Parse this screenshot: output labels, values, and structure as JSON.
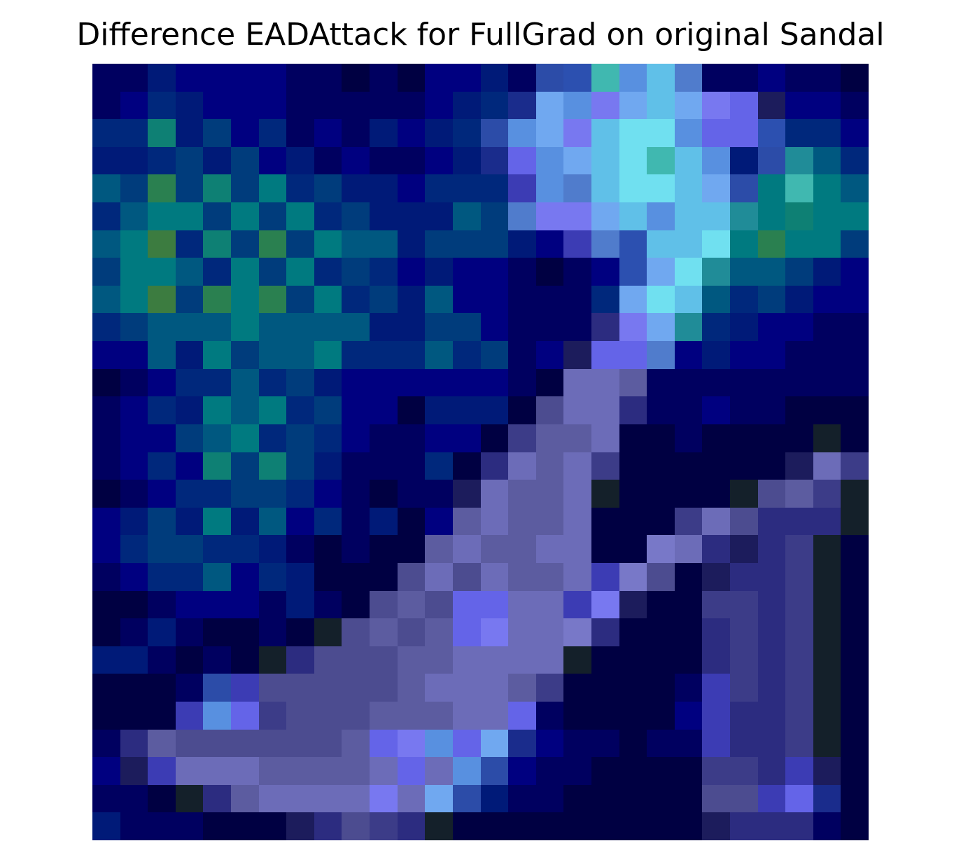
{
  "title": "Difference EADAttack for FullGrad on original Sandal",
  "chart_data": {
    "type": "heatmap",
    "title": "Difference EADAttack for FullGrad on original Sandal",
    "xlabel": "",
    "ylabel": "",
    "axes_visible": false,
    "grid": false,
    "rows": 28,
    "cols": 28,
    "palette": [
      "#000042",
      "#000060",
      "#000080",
      "#001a78",
      "#00287c",
      "#003c7c",
      "#005880",
      "#007a80",
      "#0e8074",
      "#2a8050",
      "#3c7c40",
      "#14202a",
      "#1c1c5c",
      "#2c2c80",
      "#3c3c88",
      "#4c4c90",
      "#5c5ca0",
      "#6c6cb8",
      "#7878c8",
      "#6464e8",
      "#7878f0",
      "#3c3cb4",
      "#2c4ca8",
      "#507ccc",
      "#5890e0",
      "#70a8f0",
      "#60c0e8",
      "#70e0f0",
      "#40b8b0",
      "#208c98",
      "#1a2c8c",
      "#2c50b0"
    ],
    "cells": [
      [
        1,
        1,
        3,
        2,
        2,
        2,
        2,
        1,
        1,
        0,
        1,
        0,
        2,
        2,
        3,
        1,
        22,
        31,
        28,
        24,
        26,
        23,
        1,
        1,
        2,
        1,
        1,
        0
      ],
      [
        1,
        2,
        4,
        3,
        2,
        2,
        2,
        1,
        1,
        1,
        1,
        1,
        2,
        3,
        4,
        30,
        25,
        24,
        20,
        25,
        26,
        25,
        20,
        19,
        12,
        2,
        2,
        1
      ],
      [
        4,
        4,
        8,
        3,
        5,
        2,
        4,
        1,
        2,
        1,
        3,
        2,
        3,
        4,
        22,
        24,
        25,
        20,
        26,
        27,
        27,
        24,
        19,
        19,
        31,
        4,
        4,
        2
      ],
      [
        3,
        3,
        4,
        5,
        3,
        5,
        2,
        3,
        1,
        2,
        1,
        1,
        2,
        3,
        30,
        19,
        24,
        25,
        26,
        27,
        28,
        26,
        24,
        3,
        22,
        29,
        6,
        4
      ],
      [
        6,
        5,
        9,
        5,
        8,
        5,
        7,
        4,
        5,
        3,
        3,
        2,
        4,
        4,
        4,
        21,
        24,
        23,
        26,
        27,
        27,
        26,
        25,
        22,
        7,
        28,
        7,
        6
      ],
      [
        4,
        6,
        7,
        7,
        5,
        7,
        5,
        7,
        4,
        5,
        3,
        3,
        3,
        6,
        5,
        23,
        20,
        20,
        25,
        26,
        24,
        26,
        26,
        29,
        7,
        8,
        7,
        7
      ],
      [
        6,
        7,
        10,
        4,
        8,
        5,
        9,
        5,
        7,
        6,
        6,
        3,
        5,
        5,
        5,
        3,
        2,
        21,
        23,
        31,
        26,
        26,
        27,
        7,
        9,
        7,
        7,
        5
      ],
      [
        5,
        7,
        7,
        6,
        4,
        7,
        5,
        7,
        4,
        5,
        4,
        2,
        3,
        2,
        2,
        1,
        0,
        1,
        2,
        31,
        25,
        27,
        29,
        6,
        6,
        5,
        3,
        2
      ],
      [
        6,
        7,
        10,
        5,
        9,
        7,
        9,
        5,
        7,
        4,
        5,
        3,
        6,
        2,
        2,
        1,
        1,
        1,
        4,
        25,
        27,
        26,
        6,
        4,
        5,
        3,
        2,
        2
      ],
      [
        4,
        5,
        6,
        6,
        6,
        7,
        6,
        6,
        6,
        6,
        3,
        3,
        5,
        5,
        2,
        1,
        1,
        1,
        13,
        20,
        25,
        29,
        4,
        3,
        2,
        2,
        1,
        1
      ],
      [
        2,
        2,
        6,
        3,
        7,
        5,
        6,
        6,
        7,
        4,
        4,
        4,
        6,
        4,
        5,
        1,
        2,
        12,
        19,
        19,
        23,
        2,
        3,
        2,
        2,
        1,
        1,
        1
      ],
      [
        0,
        1,
        2,
        4,
        4,
        6,
        4,
        5,
        3,
        2,
        2,
        2,
        2,
        2,
        2,
        1,
        0,
        17,
        17,
        16,
        1,
        1,
        1,
        1,
        1,
        1,
        1,
        1
      ],
      [
        1,
        2,
        4,
        3,
        7,
        6,
        7,
        4,
        5,
        2,
        2,
        0,
        3,
        3,
        3,
        0,
        15,
        17,
        17,
        13,
        1,
        1,
        2,
        1,
        1,
        0,
        0,
        0
      ],
      [
        1,
        2,
        2,
        5,
        6,
        7,
        4,
        5,
        4,
        2,
        1,
        1,
        2,
        2,
        0,
        14,
        16,
        16,
        17,
        0,
        0,
        1,
        0,
        0,
        0,
        0,
        11,
        0
      ],
      [
        1,
        2,
        4,
        2,
        8,
        5,
        8,
        5,
        3,
        1,
        1,
        1,
        4,
        0,
        13,
        17,
        16,
        17,
        14,
        0,
        0,
        0,
        0,
        0,
        0,
        12,
        17,
        14
      ],
      [
        0,
        1,
        2,
        4,
        4,
        5,
        5,
        4,
        2,
        1,
        0,
        1,
        1,
        12,
        17,
        16,
        16,
        17,
        11,
        0,
        0,
        0,
        0,
        11,
        15,
        16,
        14,
        11
      ],
      [
        2,
        3,
        5,
        3,
        7,
        3,
        6,
        2,
        4,
        1,
        3,
        0,
        2,
        16,
        17,
        16,
        16,
        17,
        0,
        0,
        0,
        14,
        17,
        15,
        13,
        13,
        13,
        11
      ],
      [
        2,
        4,
        5,
        5,
        4,
        4,
        3,
        1,
        0,
        1,
        0,
        0,
        16,
        17,
        16,
        16,
        17,
        17,
        0,
        0,
        18,
        17,
        13,
        12,
        13,
        14,
        11,
        0
      ],
      [
        1,
        2,
        4,
        4,
        6,
        2,
        4,
        3,
        0,
        0,
        0,
        15,
        17,
        15,
        17,
        16,
        16,
        17,
        21,
        18,
        15,
        0,
        12,
        13,
        13,
        14,
        11,
        0
      ],
      [
        0,
        0,
        1,
        2,
        2,
        2,
        1,
        3,
        1,
        0,
        15,
        16,
        15,
        19,
        19,
        17,
        17,
        21,
        20,
        12,
        0,
        0,
        14,
        14,
        13,
        14,
        11,
        0
      ],
      [
        0,
        1,
        3,
        1,
        0,
        0,
        1,
        0,
        11,
        15,
        16,
        15,
        16,
        19,
        20,
        17,
        17,
        18,
        13,
        0,
        0,
        0,
        13,
        14,
        13,
        14,
        11,
        0
      ],
      [
        3,
        3,
        1,
        0,
        1,
        0,
        11,
        13,
        15,
        15,
        15,
        16,
        16,
        17,
        17,
        17,
        17,
        11,
        0,
        0,
        0,
        0,
        13,
        14,
        13,
        14,
        11,
        0
      ],
      [
        0,
        0,
        0,
        1,
        22,
        21,
        15,
        15,
        15,
        15,
        15,
        16,
        17,
        17,
        17,
        16,
        14,
        0,
        0,
        0,
        0,
        1,
        21,
        14,
        13,
        14,
        11,
        0
      ],
      [
        0,
        0,
        0,
        21,
        24,
        19,
        14,
        15,
        15,
        15,
        16,
        16,
        16,
        17,
        17,
        19,
        1,
        0,
        0,
        0,
        0,
        2,
        21,
        13,
        13,
        14,
        11,
        0
      ],
      [
        1,
        13,
        16,
        15,
        15,
        15,
        15,
        15,
        15,
        16,
        19,
        20,
        24,
        19,
        25,
        30,
        2,
        1,
        1,
        0,
        1,
        1,
        21,
        13,
        13,
        14,
        11,
        0
      ],
      [
        2,
        12,
        21,
        17,
        17,
        17,
        16,
        16,
        16,
        16,
        17,
        19,
        17,
        24,
        22,
        2,
        1,
        1,
        0,
        0,
        0,
        0,
        14,
        14,
        13,
        21,
        12,
        0
      ],
      [
        1,
        1,
        0,
        11,
        13,
        16,
        17,
        17,
        17,
        17,
        20,
        17,
        25,
        22,
        3,
        1,
        1,
        0,
        0,
        0,
        0,
        0,
        15,
        15,
        21,
        19,
        30,
        0
      ],
      [
        3,
        1,
        1,
        1,
        0,
        0,
        0,
        12,
        13,
        15,
        14,
        13,
        11,
        0,
        0,
        0,
        0,
        0,
        0,
        0,
        0,
        0,
        12,
        13,
        13,
        13,
        1,
        0
      ]
    ]
  }
}
